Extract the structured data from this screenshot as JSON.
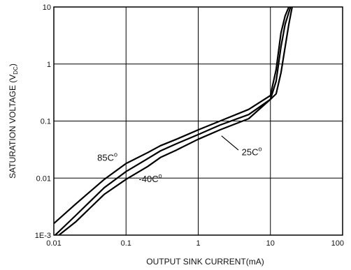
{
  "chart_data": {
    "type": "line",
    "title": "",
    "xlabel": "OUTPUT SINK CURRENT(mA)",
    "ylabel": "SATURATION VOLTAGE (V",
    "ylabel_subscript": "DC",
    "ylabel_suffix": ")",
    "x_scale": "log",
    "y_scale": "log",
    "xlim": [
      0.01,
      100
    ],
    "ylim": [
      0.001,
      10
    ],
    "x_tick_labels": [
      "0.01",
      "0.1",
      "1",
      "10",
      "100"
    ],
    "x_tick_values": [
      0.01,
      0.1,
      1,
      10,
      100
    ],
    "y_tick_labels": [
      "1E-3",
      "0.01",
      "0.1",
      "1",
      "10"
    ],
    "y_tick_values": [
      0.001,
      0.01,
      0.1,
      1,
      10
    ],
    "grid": true,
    "series": [
      {
        "name": "85C°",
        "color": "#000000",
        "x": [
          0.01,
          0.02,
          0.05,
          0.1,
          0.2,
          0.3,
          0.5,
          1,
          2,
          5,
          10,
          12,
          14,
          16,
          18
        ],
        "y": [
          0.0016,
          0.0035,
          0.0095,
          0.018,
          0.028,
          0.037,
          0.048,
          0.07,
          0.1,
          0.16,
          0.28,
          0.8,
          3.5,
          7,
          10
        ]
      },
      {
        "name": "25C°",
        "color": "#000000",
        "x": [
          0.01,
          0.02,
          0.05,
          0.1,
          0.2,
          0.3,
          0.5,
          1,
          2,
          5,
          10,
          12,
          14,
          16,
          19
        ],
        "y": [
          0.00095,
          0.0022,
          0.0068,
          0.013,
          0.022,
          0.03,
          0.04,
          0.058,
          0.085,
          0.13,
          0.24,
          0.5,
          2,
          5,
          10
        ]
      },
      {
        "name": "-40C°",
        "color": "#000000",
        "x": [
          0.01,
          0.02,
          0.05,
          0.1,
          0.2,
          0.3,
          0.5,
          1,
          2,
          5,
          10,
          12,
          14,
          16,
          18,
          20
        ],
        "y": [
          0.00085,
          0.0017,
          0.0052,
          0.0095,
          0.016,
          0.023,
          0.031,
          0.048,
          0.07,
          0.11,
          0.24,
          0.3,
          0.7,
          2,
          5,
          10
        ]
      }
    ],
    "annotations": [
      {
        "text": "85C",
        "superscript": "o",
        "series": "85C°"
      },
      {
        "text": "25C",
        "superscript": "o",
        "series": "25C°"
      },
      {
        "text": "-40C",
        "superscript": "o",
        "series": "-40C°"
      }
    ]
  }
}
